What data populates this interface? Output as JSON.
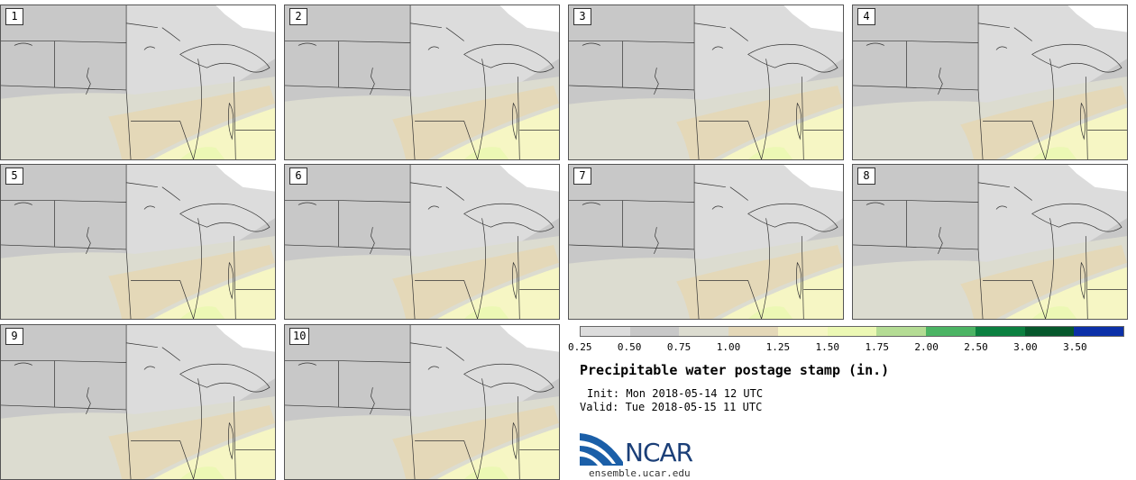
{
  "stamps": [
    {
      "label": "1"
    },
    {
      "label": "2"
    },
    {
      "label": "3"
    },
    {
      "label": "4"
    },
    {
      "label": "5"
    },
    {
      "label": "6"
    },
    {
      "label": "7"
    },
    {
      "label": "8"
    },
    {
      "label": "9"
    },
    {
      "label": "10"
    }
  ],
  "colorbar": {
    "colors": [
      "#dcdcdc",
      "#c8c8c8",
      "#dcdcd0",
      "#e4d8b8",
      "#f6f6c4",
      "#ecf8b4",
      "#b4dc94",
      "#4cb464",
      "#0c8040",
      "#06582c",
      "#0c30a8"
    ],
    "ticks": [
      "0.25",
      "0.50",
      "0.75",
      "1.00",
      "1.25",
      "1.50",
      "1.75",
      "2.00",
      "2.50",
      "3.00",
      "3.50"
    ]
  },
  "title": "Precipitable water postage stamp (in.)",
  "init": "Init: Mon 2018-05-14 12 UTC",
  "valid": "Valid: Tue 2018-05-15 11 UTC",
  "logo": {
    "text": "NCAR",
    "url": "ensemble.ucar.edu",
    "accent": "#1b5fa8"
  }
}
